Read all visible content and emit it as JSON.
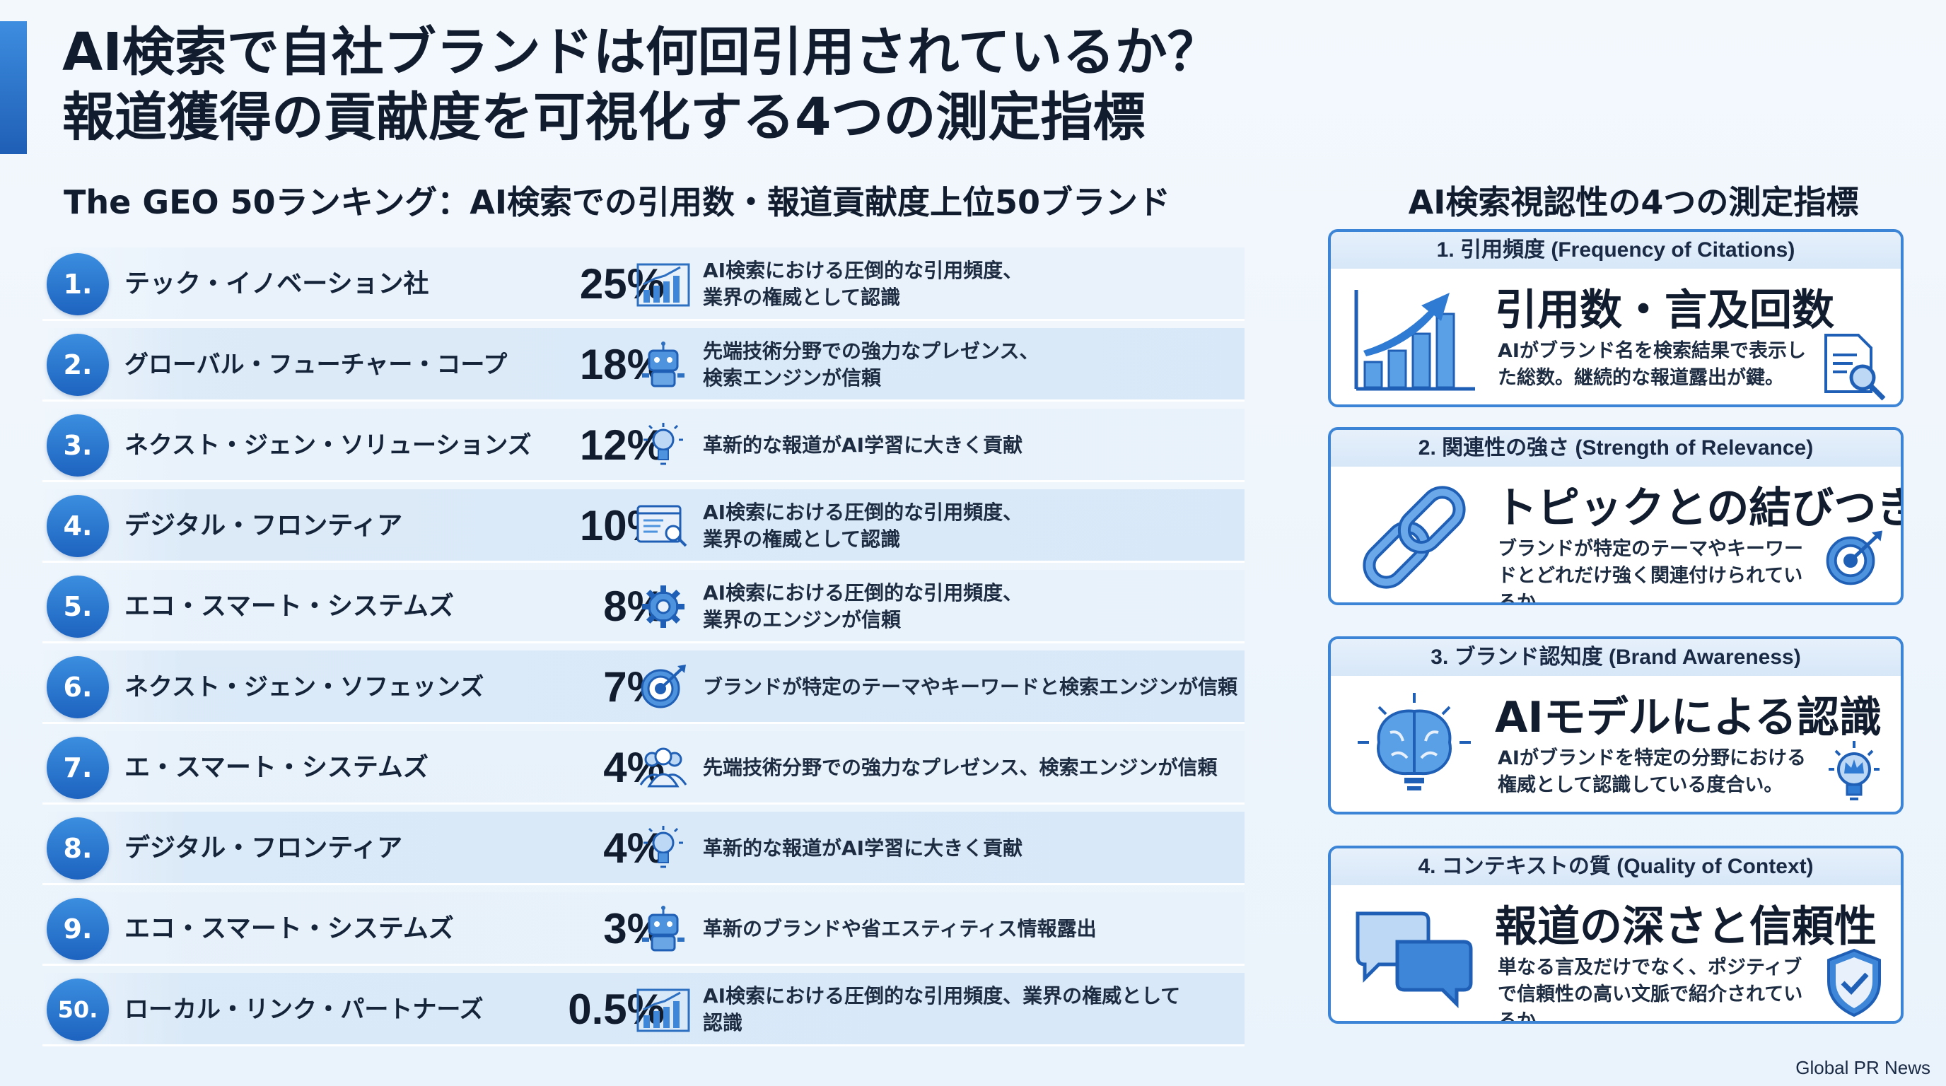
{
  "title_line1": "AI検索で自社ブランドは何回引用されているか？",
  "title_line2": "報道獲得の貢献度を可視化する4つの測定指標",
  "ranking_title": "The GEO 50ランキング：AI検索での引用数・報道貢献度上位50ブランド",
  "rankings": [
    {
      "rank": "1.",
      "brand": "テック・イノベーション社",
      "percent": "25%",
      "icon": "bar-chart-icon",
      "desc": "AI検索における圧倒的な引用頻度、\n業界の権威として認識"
    },
    {
      "rank": "2.",
      "brand": "グローバル・フューチャー・コープ",
      "percent": "18%",
      "icon": "robot-icon",
      "desc": "先端技術分野での強力なプレゼンス、\n検索エンジンが信頼"
    },
    {
      "rank": "3.",
      "brand": "ネクスト・ジェン・ソリューションズ",
      "percent": "12%",
      "icon": "lightbulb-icon",
      "desc": "革新的な報道がAI学習に大きく貢献"
    },
    {
      "rank": "4.",
      "brand": "デジタル・フロンティア",
      "percent": "10%",
      "icon": "browser-search-icon",
      "desc": "AI検索における圧倒的な引用頻度、\n業界の権威として認識"
    },
    {
      "rank": "5.",
      "brand": "エコ・スマート・システムズ",
      "percent": "8%",
      "icon": "gear-icon",
      "desc": "AI検索における圧倒的な引用頻度、\n業界のエンジンが信頼"
    },
    {
      "rank": "6.",
      "brand": "ネクスト・ジェン・ソフェッンズ",
      "percent": "7%",
      "icon": "target-icon",
      "desc": "ブランドが特定のテーマやキーワードと検索エンジンが信頼"
    },
    {
      "rank": "7.",
      "brand": "エ・スマート・システムズ",
      "percent": "4%",
      "icon": "people-icon",
      "desc": "先端技術分野での強力なプレゼンス、検索エンジンが信頼"
    },
    {
      "rank": "8.",
      "brand": "デジタル・フロンティア",
      "percent": "4%",
      "icon": "lightbulb-icon",
      "desc": "革新的な報道がAI学習に大きく貢献"
    },
    {
      "rank": "9.",
      "brand": "エコ・スマート・システムズ",
      "percent": "3%",
      "icon": "robot-icon",
      "desc": "革新のブランドや省エスティティス情報露出"
    },
    {
      "rank": "50.",
      "brand": "ローカル・リンク・パートナーズ",
      "percent": "0.5%",
      "icon": "bar-chart-icon",
      "desc": "AI検索における圧倒的な引用頻度、業界の権威として\n認識"
    }
  ],
  "metrics_title": "AI検索視認性の4つの測定指標",
  "metrics": [
    {
      "header": "1. 引用頻度 (Frequency of Citations)",
      "big": "引用数・言及回数",
      "text": "AIがブランド名を検索結果で表示した総数。継続的な報道露出が鍵。",
      "main_icon": "growth-chart-icon",
      "small_icon": "document-search-icon"
    },
    {
      "header": "2. 関連性の強さ (Strength of Relevance)",
      "big": "トピックとの結びつき",
      "text": "ブランドが特定のテーマやキーワードとどれだけ強く関連付けられているか。",
      "main_icon": "chain-link-icon",
      "small_icon": "target-icon"
    },
    {
      "header": "3. ブランド認知度 (Brand Awareness)",
      "big": "AIモデルによる認識",
      "text": "AIがブランドを特定の分野における権威として認識している度合い。",
      "main_icon": "brain-icon",
      "small_icon": "crown-bulb-icon"
    },
    {
      "header": "4. コンテキストの質 (Quality of Context)",
      "big": "報道の深さと信頼性",
      "text": "単なる言及だけでなく、ポジティブで信頼性の高い文脈で紹介されているか。",
      "main_icon": "chat-bubbles-icon",
      "small_icon": "shield-check-icon"
    }
  ],
  "footer": "Global PR News",
  "colors": {
    "accent": "#2f7ad3",
    "badge": "#1d63bf",
    "text": "#111c2e"
  }
}
